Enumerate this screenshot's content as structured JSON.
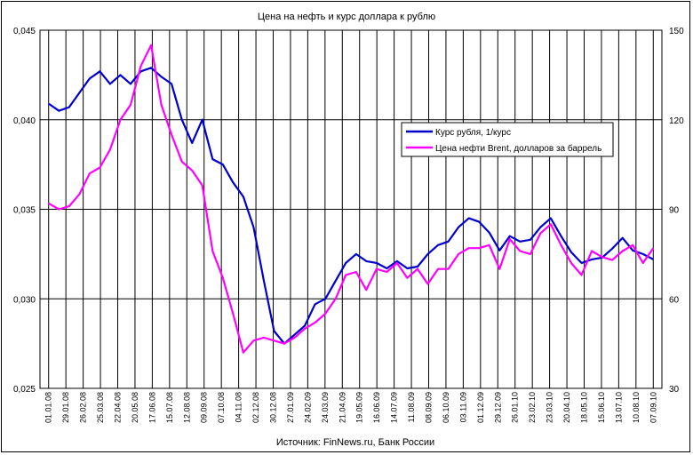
{
  "chart_data": {
    "type": "line",
    "title": "Цена на нефть и курс доллара к рублю",
    "source": "Источник: FinNews.ru, Банк России",
    "y_left": {
      "range": [
        0.025,
        0.045
      ],
      "ticks": [
        "0,025",
        "0,030",
        "0,035",
        "0,040",
        "0,045"
      ]
    },
    "y_right": {
      "range": [
        30,
        150
      ],
      "ticks": [
        "30",
        "60",
        "90",
        "120",
        "150"
      ]
    },
    "x_ticks": [
      "01.01.08",
      "29.01.08",
      "26.02.08",
      "25.03.08",
      "22.04.08",
      "20.05.08",
      "17.06.08",
      "15.07.08",
      "12.08.08",
      "09.09.08",
      "07.10.08",
      "04.11.08",
      "02.12.08",
      "30.12.08",
      "27.01.09",
      "24.02.09",
      "24.03.09",
      "21.04.09",
      "19.05.09",
      "16.06.09",
      "14.07.09",
      "11.08.09",
      "08.09.09",
      "06.10.09",
      "03.11.09",
      "01.12.09",
      "29.12.09",
      "26.01.10",
      "23.02.10",
      "23.03.10",
      "20.04.10",
      "18.05.10",
      "15.06.10",
      "13.07.10",
      "10.08.10",
      "07.09.10"
    ],
    "grid": true,
    "legend_placement": "right",
    "series": [
      {
        "name": "Курс рубля, 1/курс",
        "axis": "left",
        "color": "#0000cc",
        "values": [
          0.0409,
          0.0405,
          0.0407,
          0.0415,
          0.0423,
          0.0427,
          0.042,
          0.0425,
          0.042,
          0.0427,
          0.0429,
          0.0424,
          0.042,
          0.04,
          0.0387,
          0.04,
          0.0378,
          0.0375,
          0.0365,
          0.0357,
          0.034,
          0.031,
          0.0282,
          0.0275,
          0.028,
          0.0285,
          0.0297,
          0.03,
          0.031,
          0.032,
          0.0325,
          0.0321,
          0.032,
          0.0317,
          0.0321,
          0.0317,
          0.0318,
          0.0325,
          0.033,
          0.0332,
          0.034,
          0.0345,
          0.0343,
          0.0337,
          0.0327,
          0.0335,
          0.0332,
          0.0333,
          0.034,
          0.0345,
          0.0335,
          0.0326,
          0.032,
          0.0322,
          0.0323,
          0.0328,
          0.0334,
          0.0327,
          0.0325,
          0.0322
        ]
      },
      {
        "name": "Цена нефти Brent, долларов за баррель",
        "axis": "right",
        "color": "#ff00ff",
        "values": [
          92,
          90,
          91,
          95,
          102,
          104,
          110,
          120,
          125,
          138,
          145,
          125,
          115,
          106,
          103,
          98,
          76,
          67,
          55,
          42,
          46,
          47,
          46,
          45,
          47,
          50,
          52,
          55,
          60,
          68,
          69,
          63,
          70,
          69,
          72,
          67,
          70,
          65,
          70,
          70,
          75,
          77,
          77,
          78,
          70,
          80,
          76,
          75,
          82,
          85,
          78,
          72,
          68,
          76,
          74,
          73,
          76,
          78,
          72,
          77
        ]
      }
    ]
  }
}
